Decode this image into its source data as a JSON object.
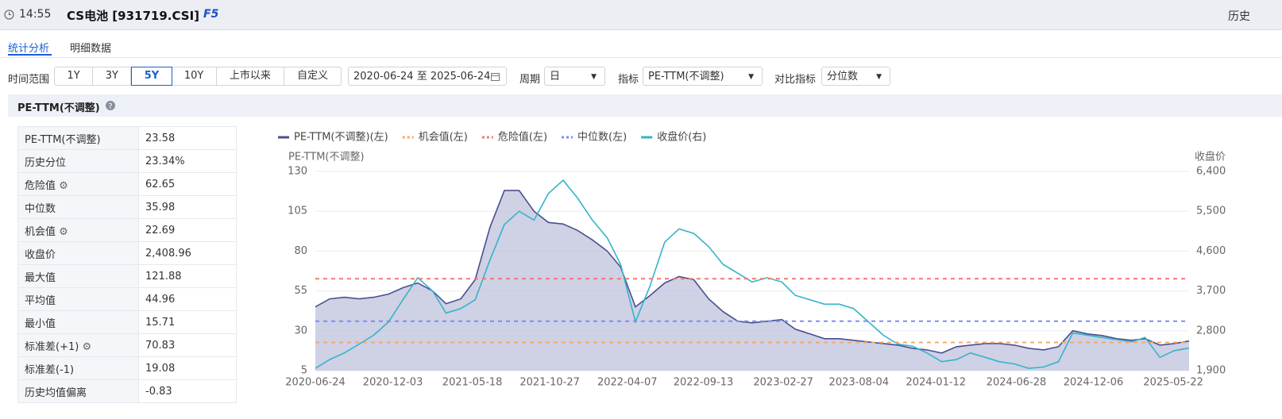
{
  "header": {
    "time": "14:55",
    "title": "CS电池 [931719.CSI]",
    "shortcut": "F5",
    "history": "历史"
  },
  "tabs": [
    "统计分析",
    "明细数据"
  ],
  "filters": {
    "range_label": "时间范围",
    "ranges": [
      "1Y",
      "3Y",
      "5Y",
      "10Y",
      "上市以来",
      "自定义"
    ],
    "date_start": "2020-06-24",
    "date_sep": "至",
    "date_end": "2025-06-24",
    "period_label": "周期",
    "period": "日",
    "indicator_label": "指标",
    "indicator": "PE-TTM(不调整)",
    "compare_label": "对比指标",
    "compare": "分位数"
  },
  "section": {
    "title": "PE-TTM(不调整)"
  },
  "stats": {
    "rows": [
      [
        "PE-TTM(不调整)",
        "23.58"
      ],
      [
        "历史分位",
        "23.34%"
      ],
      [
        "危险值",
        "62.65"
      ],
      [
        "中位数",
        "35.98"
      ],
      [
        "机会值",
        "22.69"
      ],
      [
        "收盘价",
        "2,408.96"
      ],
      [
        "最大值",
        "121.88"
      ],
      [
        "平均值",
        "44.96"
      ],
      [
        "最小值",
        "15.71"
      ],
      [
        "标准差(+1)",
        "70.83"
      ],
      [
        "标准差(-1)",
        "19.08"
      ],
      [
        "历史均值偏离",
        "-0.83"
      ]
    ]
  },
  "chart_data": {
    "type": "line",
    "y_title": "PE-TTM(不调整)",
    "y2_title": "收盘价",
    "grid": true,
    "x": [
      "2020-06-24",
      "2020-07-24",
      "2020-08-24",
      "2020-09-24",
      "2020-10-24",
      "2020-11-24",
      "2020-12-24",
      "2021-01-24",
      "2021-02-24",
      "2021-03-24",
      "2021-04-24",
      "2021-05-24",
      "2021-06-24",
      "2021-07-24",
      "2021-08-24",
      "2021-09-24",
      "2021-10-24",
      "2021-11-24",
      "2021-12-24",
      "2022-01-24",
      "2022-02-24",
      "2022-03-24",
      "2022-04-24",
      "2022-05-24",
      "2022-06-24",
      "2022-07-24",
      "2022-08-24",
      "2022-09-24",
      "2022-10-24",
      "2022-11-24",
      "2022-12-24",
      "2023-01-24",
      "2023-02-24",
      "2023-03-24",
      "2023-04-24",
      "2023-05-24",
      "2023-06-24",
      "2023-07-24",
      "2023-08-24",
      "2023-09-24",
      "2023-10-24",
      "2023-11-24",
      "2023-12-24",
      "2024-01-24",
      "2024-02-24",
      "2024-03-24",
      "2024-04-24",
      "2024-05-24",
      "2024-06-24",
      "2024-07-24",
      "2024-08-24",
      "2024-09-24",
      "2024-10-24",
      "2024-11-24",
      "2024-12-24",
      "2025-01-24",
      "2025-02-24",
      "2025-03-24",
      "2025-04-24",
      "2025-05-24",
      "2025-06-24"
    ],
    "series": [
      {
        "name": "PE-TTM(不调整)(左)",
        "color": "#4b4f8f",
        "area": true,
        "values": [
          45,
          50,
          51,
          50,
          51,
          53,
          57,
          60,
          55,
          47,
          50,
          62,
          95,
          118,
          118,
          105,
          98,
          97,
          93,
          87,
          80,
          70,
          45,
          52,
          60,
          64,
          62,
          50,
          42,
          36,
          35,
          36,
          37,
          31,
          28,
          25,
          25,
          24,
          23,
          22,
          21,
          19,
          18,
          16,
          20,
          21,
          22,
          22,
          21,
          19,
          18,
          20,
          30,
          28,
          27,
          25,
          24,
          25,
          21,
          22,
          23.58
        ]
      },
      {
        "name": "收盘价(右)",
        "color": "#36b3c9",
        "axis": "y2",
        "values": [
          1950,
          2150,
          2300,
          2500,
          2700,
          3000,
          3500,
          4000,
          3700,
          3200,
          3300,
          3500,
          4400,
          5200,
          5500,
          5300,
          5900,
          6200,
          5800,
          5300,
          4900,
          4300,
          3000,
          3800,
          4800,
          5100,
          5000,
          4700,
          4300,
          4100,
          3900,
          4000,
          3900,
          3600,
          3500,
          3400,
          3400,
          3300,
          3000,
          2700,
          2500,
          2450,
          2300,
          2100,
          2150,
          2300,
          2200,
          2100,
          2050,
          1950,
          1980,
          2100,
          2750,
          2700,
          2650,
          2600,
          2550,
          2650,
          2200,
          2350,
          2408.96
        ]
      }
    ],
    "reference_lines": [
      {
        "name": "机会值(左)",
        "color": "#f5a86a",
        "value": 22.69
      },
      {
        "name": "危险值(左)",
        "color": "#f0786e",
        "value": 62.65
      },
      {
        "name": "中位数(左)",
        "color": "#7b8df5",
        "value": 35.98
      }
    ],
    "xlim": [
      "2020-06-24",
      "2025-06-24"
    ],
    "xticks": [
      "2020-06-24",
      "2020-12-03",
      "2021-05-18",
      "2021-10-27",
      "2022-04-07",
      "2022-09-13",
      "2023-02-27",
      "2023-08-04",
      "2024-01-12",
      "2024-06-28",
      "2024-12-06",
      "2025-05-22"
    ],
    "ylim": [
      5,
      130
    ],
    "yticks": [
      5,
      30,
      55,
      80,
      105,
      130
    ],
    "y2lim": [
      1900,
      6400
    ],
    "y2ticks": [
      {
        "value": 1900,
        "label": "1,900"
      },
      {
        "value": 2800,
        "label": "2,800"
      },
      {
        "value": 3700,
        "label": "3,700"
      },
      {
        "value": 4600,
        "label": "4,600"
      },
      {
        "value": 5500,
        "label": "5,500"
      },
      {
        "value": 6400,
        "label": "6,400"
      }
    ]
  }
}
